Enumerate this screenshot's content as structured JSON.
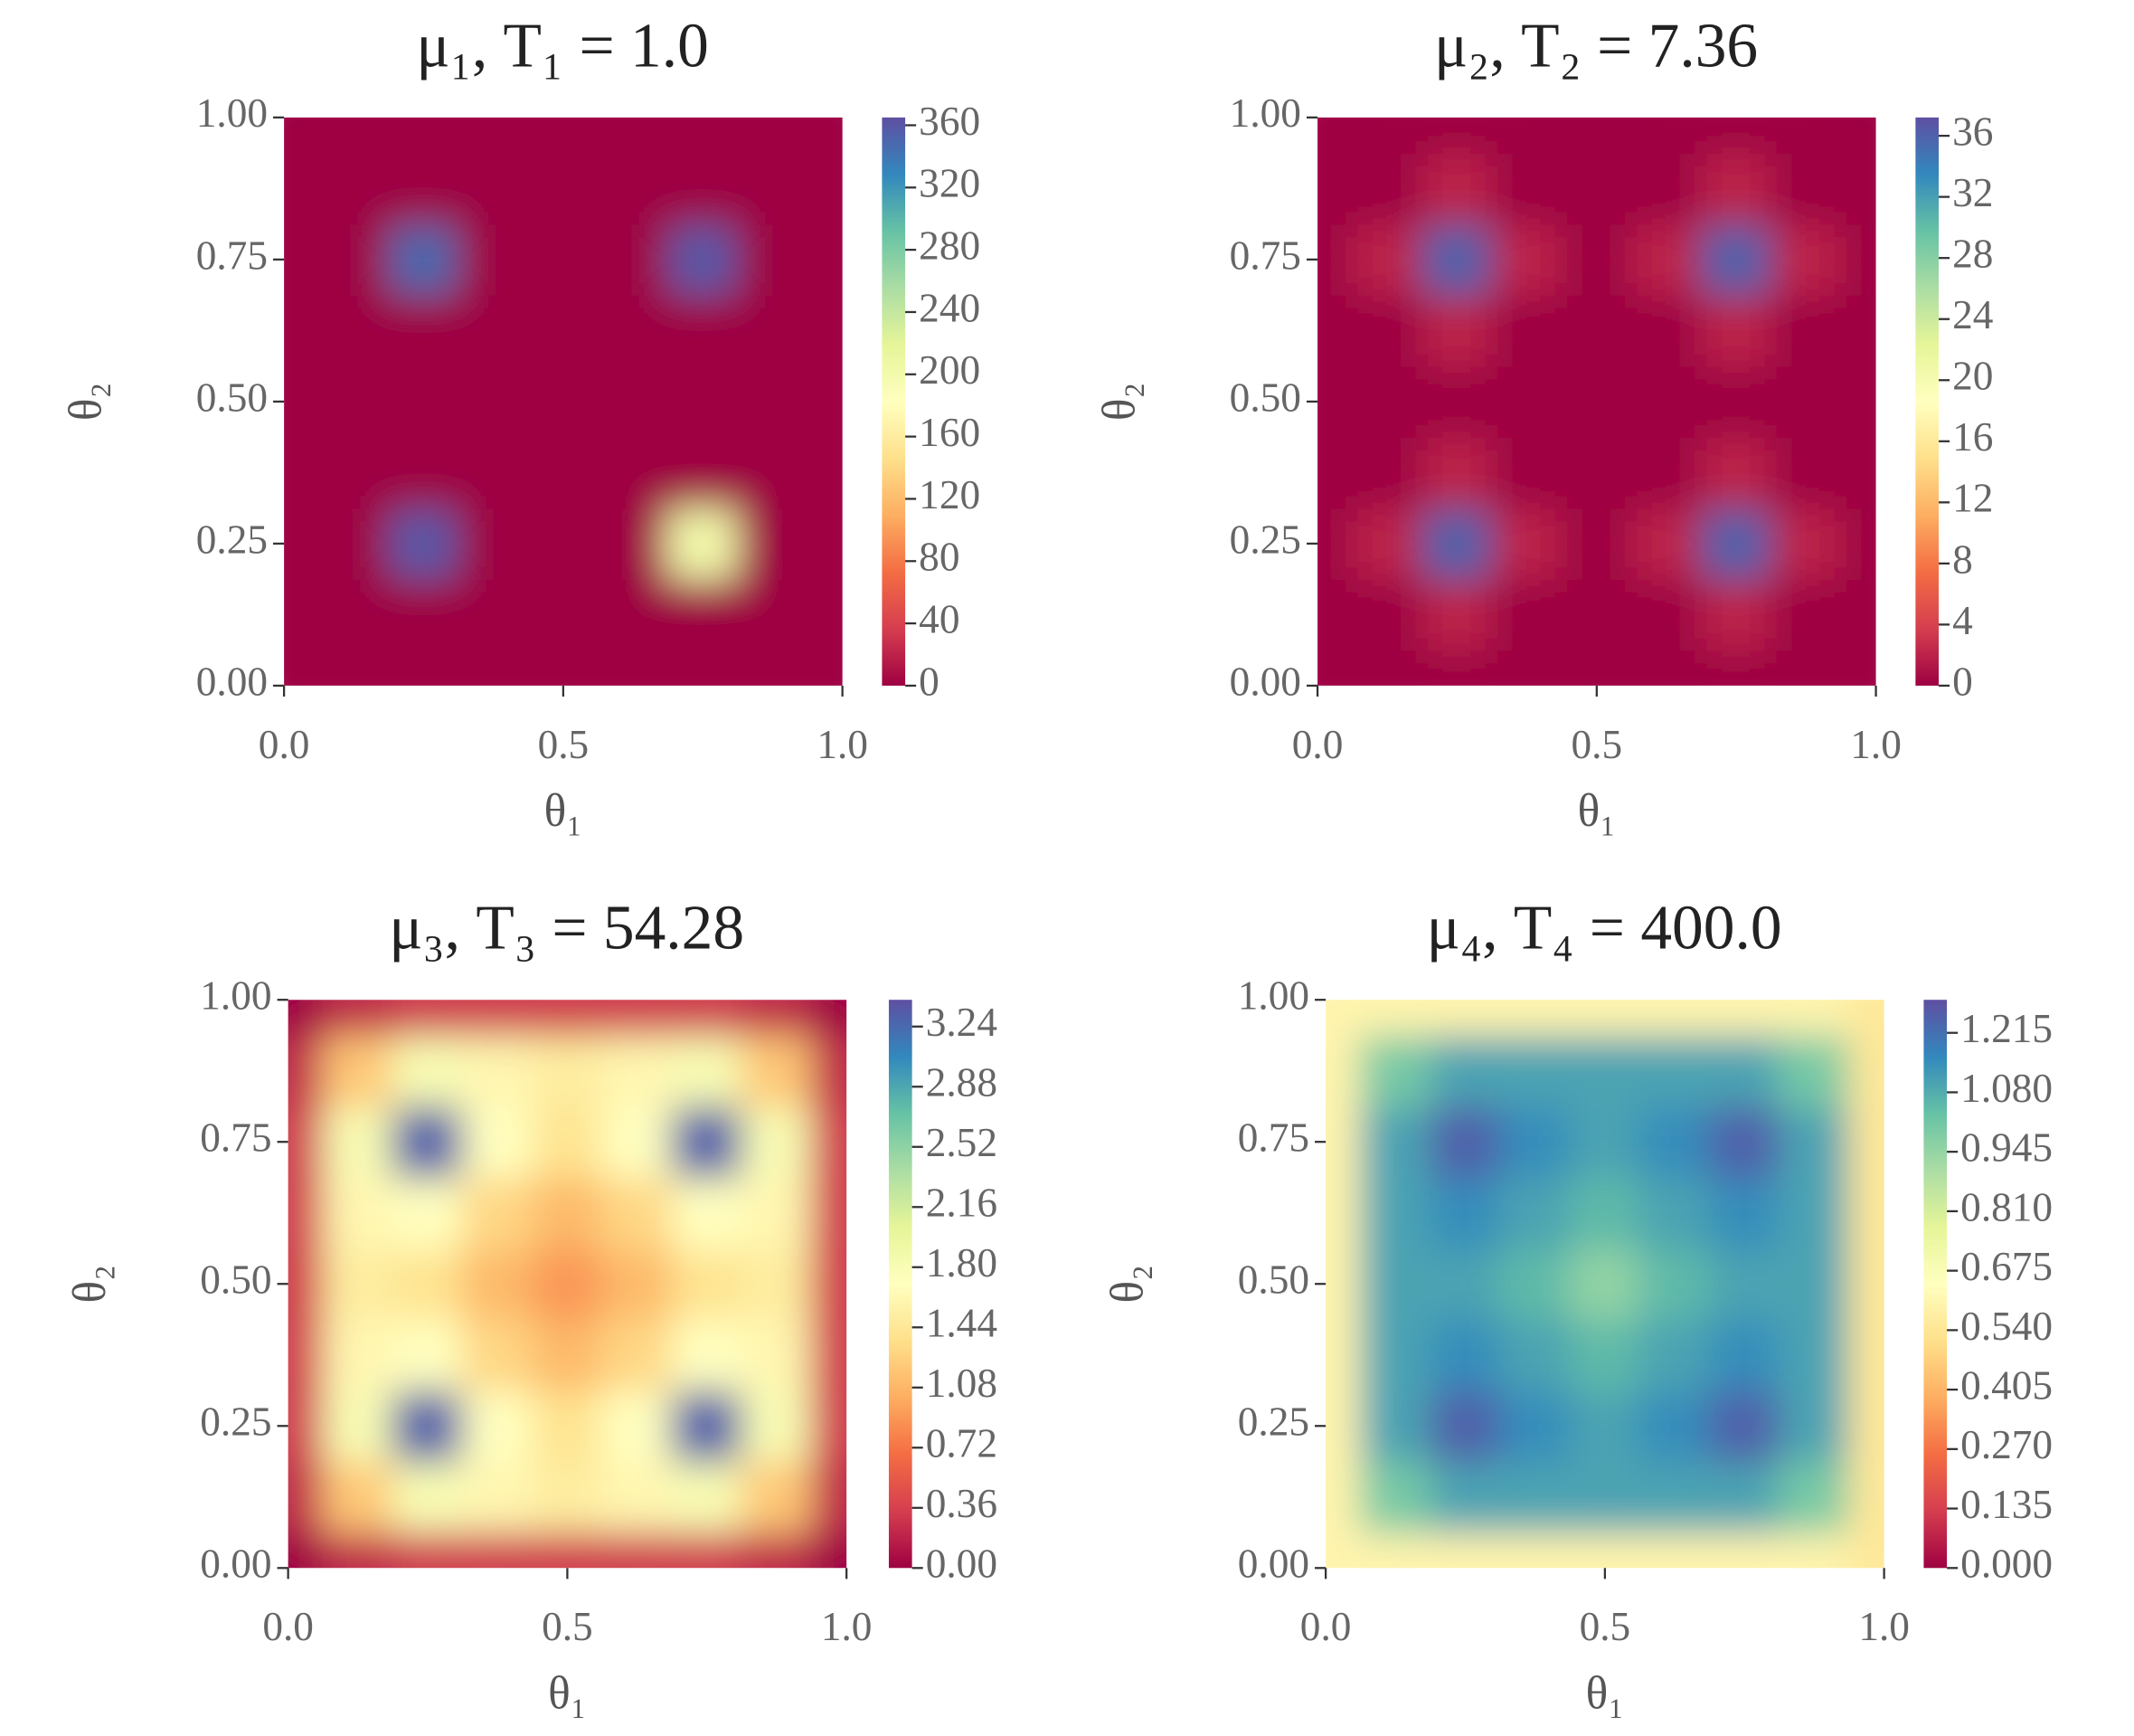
{
  "chart_data": [
    {
      "type": "heatmap",
      "title": "μ₁, T₁ = 1.0",
      "xlabel": "θ₁",
      "ylabel": "θ₂",
      "x": [
        0,
        0.125,
        0.25,
        0.375,
        0.5,
        0.625,
        0.75,
        0.875,
        1
      ],
      "y": [
        0,
        0.125,
        0.25,
        0.375,
        0.5,
        0.625,
        0.75,
        0.875,
        1
      ],
      "z": [
        [
          0,
          0,
          0,
          0,
          0,
          0,
          0,
          0,
          0
        ],
        [
          0,
          0,
          0,
          0,
          0,
          0,
          0,
          0,
          0
        ],
        [
          0,
          0,
          360,
          0,
          0,
          0,
          200,
          0,
          0
        ],
        [
          0,
          0,
          0,
          0,
          0,
          0,
          0,
          0,
          0
        ],
        [
          0,
          0,
          0,
          0,
          0,
          0,
          0,
          0,
          0
        ],
        [
          0,
          0,
          0,
          0,
          0,
          0,
          0,
          0,
          0
        ],
        [
          0,
          0,
          350,
          0,
          0,
          0,
          360,
          0,
          0
        ],
        [
          0,
          0,
          0,
          0,
          0,
          0,
          0,
          0,
          0
        ],
        [
          0,
          0,
          0,
          0,
          0,
          0,
          0,
          0,
          0
        ]
      ],
      "xlim": [
        0,
        1
      ],
      "ylim": [
        0,
        1
      ],
      "xticks": [
        {
          "value": 0,
          "label": "0.0"
        },
        0.5,
        {
          "value": 1,
          "label": "1.0"
        }
      ],
      "yticks": [
        {
          "value": 0,
          "label": "0.00"
        },
        0.25,
        {
          "value": 0.5,
          "label": "0.50"
        },
        0.75,
        {
          "value": 1,
          "label": "1.00"
        }
      ],
      "colormap": "Spectral",
      "zlim": [
        0,
        365
      ],
      "zticks": [
        0,
        40,
        80,
        120,
        160,
        200,
        240,
        280,
        320,
        360
      ]
    },
    {
      "type": "heatmap",
      "title": "μ₂, T₂ = 7.36",
      "xlabel": "θ₁",
      "ylabel": "θ₂",
      "x": [
        0,
        0.125,
        0.25,
        0.375,
        0.5,
        0.625,
        0.75,
        0.875,
        1
      ],
      "y": [
        0,
        0.125,
        0.25,
        0.375,
        0.5,
        0.625,
        0.75,
        0.875,
        1
      ],
      "z": [
        [
          0,
          0,
          0,
          0,
          0,
          0,
          0,
          0,
          0
        ],
        [
          0,
          0,
          2,
          0,
          0,
          0,
          2,
          0,
          0
        ],
        [
          0,
          2,
          36,
          2,
          0,
          2,
          36,
          2,
          0
        ],
        [
          0,
          0,
          2,
          0,
          0,
          0,
          2,
          0,
          0
        ],
        [
          0,
          0,
          0,
          0,
          0,
          0,
          0,
          0,
          0
        ],
        [
          0,
          0,
          2,
          0,
          0,
          0,
          2,
          0,
          0
        ],
        [
          0,
          2,
          36,
          2,
          0,
          2,
          36,
          2,
          0
        ],
        [
          0,
          0,
          2,
          0,
          0,
          0,
          2,
          0,
          0
        ],
        [
          0,
          0,
          0,
          0,
          0,
          0,
          0,
          0,
          0
        ]
      ],
      "xlim": [
        0,
        1
      ],
      "ylim": [
        0,
        1
      ],
      "xticks": [
        {
          "value": 0,
          "label": "0.0"
        },
        0.5,
        {
          "value": 1,
          "label": "1.0"
        }
      ],
      "yticks": [
        {
          "value": 0,
          "label": "0.00"
        },
        0.25,
        {
          "value": 0.5,
          "label": "0.50"
        },
        0.75,
        {
          "value": 1,
          "label": "1.00"
        }
      ],
      "colormap": "Spectral",
      "zlim": [
        0,
        37.2
      ],
      "zticks": [
        0,
        4,
        8,
        12,
        16,
        20,
        24,
        28,
        32,
        36
      ]
    },
    {
      "type": "heatmap",
      "title": "μ₃, T₃ = 54.28",
      "xlabel": "θ₁",
      "ylabel": "θ₂",
      "x": [
        0,
        0.125,
        0.25,
        0.375,
        0.5,
        0.625,
        0.75,
        0.875,
        1
      ],
      "y": [
        0,
        0.125,
        0.25,
        0.375,
        0.5,
        0.625,
        0.75,
        0.875,
        1
      ],
      "z": [
        [
          0,
          0.2,
          0.3,
          0.3,
          0.3,
          0.3,
          0.3,
          0.2,
          0
        ],
        [
          0.2,
          1.2,
          1.8,
          1.6,
          1.5,
          1.6,
          1.8,
          1.2,
          0.2
        ],
        [
          0.3,
          1.8,
          3.3,
          1.7,
          1.4,
          1.7,
          3.3,
          1.8,
          0.3
        ],
        [
          0.3,
          1.6,
          1.7,
          1.3,
          1.1,
          1.3,
          1.7,
          1.6,
          0.3
        ],
        [
          0.3,
          1.5,
          1.4,
          1.1,
          0.9,
          1.1,
          1.4,
          1.5,
          0.3
        ],
        [
          0.3,
          1.6,
          1.7,
          1.3,
          1.1,
          1.3,
          1.7,
          1.6,
          0.3
        ],
        [
          0.3,
          1.8,
          3.3,
          1.7,
          1.4,
          1.7,
          3.3,
          1.8,
          0.3
        ],
        [
          0.2,
          1.2,
          1.8,
          1.6,
          1.5,
          1.6,
          1.8,
          1.2,
          0.2
        ],
        [
          0,
          0.2,
          0.3,
          0.3,
          0.3,
          0.3,
          0.3,
          0.2,
          0
        ]
      ],
      "xlim": [
        0,
        1
      ],
      "ylim": [
        0,
        1
      ],
      "xticks": [
        {
          "value": 0,
          "label": "0.0"
        },
        0.5,
        {
          "value": 1,
          "label": "1.0"
        }
      ],
      "yticks": [
        {
          "value": 0,
          "label": "0.00"
        },
        0.25,
        {
          "value": 0.5,
          "label": "0.50"
        },
        0.75,
        {
          "value": 1,
          "label": "1.00"
        }
      ],
      "colormap": "Spectral",
      "zlim": [
        0,
        3.4
      ],
      "zticks": [
        {
          "value": 0,
          "label": "0.00"
        },
        0.36,
        0.72,
        1.08,
        1.44,
        {
          "value": 1.8,
          "label": "1.80"
        },
        2.16,
        2.52,
        2.88,
        3.24
      ]
    },
    {
      "type": "heatmap",
      "title": "μ₄, T₄ = 400.0",
      "xlabel": "θ₁",
      "ylabel": "θ₂",
      "x": [
        0,
        0.125,
        0.25,
        0.375,
        0.5,
        0.625,
        0.75,
        0.875,
        1
      ],
      "y": [
        0,
        0.125,
        0.25,
        0.375,
        0.5,
        0.625,
        0.75,
        0.875,
        1
      ],
      "z": [
        [
          0.6,
          0.6,
          0.6,
          0.6,
          0.6,
          0.6,
          0.6,
          0.6,
          0.55
        ],
        [
          0.6,
          1.0,
          1.1,
          1.1,
          1.1,
          1.1,
          1.1,
          1.0,
          0.55
        ],
        [
          0.6,
          1.1,
          1.25,
          1.15,
          1.1,
          1.15,
          1.25,
          1.1,
          0.55
        ],
        [
          0.6,
          1.1,
          1.15,
          1.1,
          1.05,
          1.1,
          1.15,
          1.1,
          0.55
        ],
        [
          0.6,
          1.1,
          1.1,
          1.05,
          0.95,
          1.05,
          1.1,
          1.1,
          0.55
        ],
        [
          0.6,
          1.1,
          1.15,
          1.1,
          1.05,
          1.1,
          1.15,
          1.1,
          0.55
        ],
        [
          0.6,
          1.1,
          1.25,
          1.15,
          1.1,
          1.15,
          1.25,
          1.1,
          0.55
        ],
        [
          0.6,
          1.0,
          1.1,
          1.1,
          1.1,
          1.1,
          1.1,
          1.0,
          0.55
        ],
        [
          0.6,
          0.6,
          0.6,
          0.6,
          0.6,
          0.6,
          0.6,
          0.6,
          0.55
        ]
      ],
      "xlim": [
        0,
        1
      ],
      "ylim": [
        0,
        1
      ],
      "xticks": [
        {
          "value": 0,
          "label": "0.0"
        },
        0.5,
        {
          "value": 1,
          "label": "1.0"
        }
      ],
      "yticks": [
        {
          "value": 0,
          "label": "0.00"
        },
        0.25,
        {
          "value": 0.5,
          "label": "0.50"
        },
        0.75,
        {
          "value": 1,
          "label": "1.00"
        }
      ],
      "colormap": "Spectral",
      "zlim": [
        0,
        1.29
      ],
      "zticks": [
        {
          "value": 0,
          "label": "0.000"
        },
        0.135,
        {
          "value": 0.27,
          "label": "0.270"
        },
        0.405,
        {
          "value": 0.54,
          "label": "0.540"
        },
        0.675,
        {
          "value": 0.81,
          "label": "0.810"
        },
        0.945,
        {
          "value": 1.08,
          "label": "1.080"
        },
        1.215
      ]
    }
  ]
}
